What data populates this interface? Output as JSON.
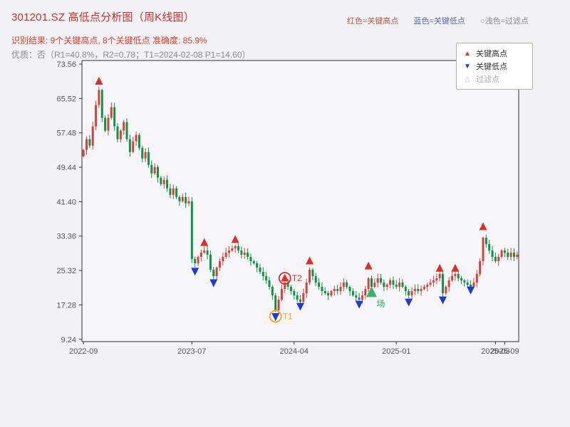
{
  "header": {
    "title": "301201.SZ 高低点分析图（周K线图）",
    "legend_inline": [
      {
        "label": "红色=关键高点",
        "color": "#b05a55"
      },
      {
        "label": "蓝色=关键低点",
        "color": "#5a68ad"
      },
      {
        "label": "○浅色=过滤点",
        "color": "#8a8a8a"
      }
    ],
    "result_line": "识别结果: 9个关键高点, 8个关键低点   准确度: 85.9%",
    "quality_line": "优质：否（R1=40.8%，R2=0.78；T1=2024-02-08 P1=14.60）"
  },
  "legend_box": {
    "items": [
      {
        "label": "关键高点",
        "symbol": "up-triangle",
        "symbol_char": "▲",
        "color": "#d9302c"
      },
      {
        "label": "关键低点",
        "symbol": "down-triangle",
        "symbol_char": "▼",
        "color": "#1f3bd0"
      },
      {
        "label": "过滤点",
        "symbol": "up-triangle-outline",
        "symbol_char": "△",
        "color": "#c4c4c8"
      }
    ]
  },
  "chart_data": {
    "type": "candlestick",
    "title": "301201.SZ 高低点分析图（周K线图）",
    "period": "weekly",
    "symbol": "301201.SZ",
    "ylim": [
      8.7,
      74.4
    ],
    "y_ticks": [
      "9.24",
      "17.28",
      "25.32",
      "33.36",
      "41.40",
      "49.44",
      "57.48",
      "65.52",
      "73.56"
    ],
    "x_ticks": [
      {
        "index": 0,
        "label": "2022-09"
      },
      {
        "index": 35,
        "label": "2023-07"
      },
      {
        "index": 68,
        "label": "2024-04"
      },
      {
        "index": 101,
        "label": "2025-01"
      },
      {
        "index": 133,
        "label": "2025-03"
      },
      {
        "index": 136,
        "label": "2025-09"
      }
    ],
    "first_open": 52.0,
    "closes": [
      53.5,
      56.0,
      54.5,
      59.0,
      64.0,
      67.5,
      61.0,
      58.0,
      61.0,
      63.5,
      59.0,
      56.0,
      58.0,
      60.0,
      56.0,
      53.0,
      55.5,
      57.0,
      54.0,
      51.5,
      53.0,
      50.0,
      48.0,
      49.5,
      47.0,
      45.5,
      46.5,
      44.5,
      43.0,
      44.5,
      42.5,
      41.5,
      42.5,
      41.0,
      41.5,
      28.0,
      27.0,
      28.5,
      29.5,
      30.0,
      29.0,
      25.5,
      24.0,
      26.0,
      27.5,
      28.5,
      29.5,
      30.0,
      30.5,
      31.0,
      30.0,
      29.0,
      29.5,
      28.5,
      27.5,
      27.0,
      26.0,
      25.0,
      24.0,
      23.0,
      21.5,
      19.5,
      16.0,
      18.5,
      21.0,
      22.5,
      21.5,
      20.5,
      19.5,
      18.5,
      18.0,
      20.0,
      22.5,
      25.5,
      24.0,
      22.5,
      21.5,
      20.5,
      20.0,
      19.5,
      20.5,
      21.0,
      20.5,
      21.5,
      22.5,
      21.5,
      20.5,
      19.5,
      19.0,
      18.5,
      19.5,
      21.0,
      23.5,
      21.5,
      22.5,
      23.5,
      22.5,
      21.5,
      22.0,
      23.0,
      22.0,
      21.5,
      22.5,
      21.5,
      20.5,
      19.5,
      20.5,
      21.0,
      20.5,
      21.0,
      21.5,
      22.0,
      22.5,
      23.0,
      23.5,
      24.5,
      20.0,
      21.5,
      23.0,
      24.0,
      24.5,
      23.5,
      23.0,
      22.5,
      22.0,
      21.5,
      22.5,
      24.5,
      27.5,
      33.0,
      31.5,
      30.0,
      28.5,
      27.5,
      28.5,
      30.0,
      29.5,
      28.5,
      29.5,
      28.5,
      29.0
    ],
    "key_highs": [
      {
        "index": 5,
        "value": 69.5
      },
      {
        "index": 39,
        "value": 31.8
      },
      {
        "index": 49,
        "value": 32.5
      },
      {
        "index": 65,
        "value": 23.5
      },
      {
        "index": 73,
        "value": 27.5
      },
      {
        "index": 92,
        "value": 26.3
      },
      {
        "index": 115,
        "value": 25.8
      },
      {
        "index": 120,
        "value": 25.8
      },
      {
        "index": 129,
        "value": 35.5
      }
    ],
    "key_lows": [
      {
        "index": 36,
        "value": 25.2
      },
      {
        "index": 42,
        "value": 22.5
      },
      {
        "index": 62,
        "value": 14.6
      },
      {
        "index": 70,
        "value": 17.0
      },
      {
        "index": 89,
        "value": 17.5
      },
      {
        "index": 105,
        "value": 18.0
      },
      {
        "index": 116,
        "value": 18.5
      },
      {
        "index": 125,
        "value": 20.8
      }
    ],
    "annotations": [
      {
        "text": "T1",
        "index": 62,
        "value": 14.6,
        "type": "circle",
        "color": "#f5a623"
      },
      {
        "text": "T2",
        "index": 65,
        "value": 23.5,
        "type": "circle",
        "color": "#d9302c"
      },
      {
        "text": "场",
        "index": 93,
        "value": 20.2,
        "type": "entry",
        "color": "#2bb05a"
      }
    ],
    "colors": {
      "up": "#d9403c",
      "down": "#0f9347",
      "key_high": "#d9302c",
      "key_low": "#1f3bd0",
      "entry": "#3cb06a",
      "axis_text": "#555555",
      "frame": "#333333"
    }
  }
}
